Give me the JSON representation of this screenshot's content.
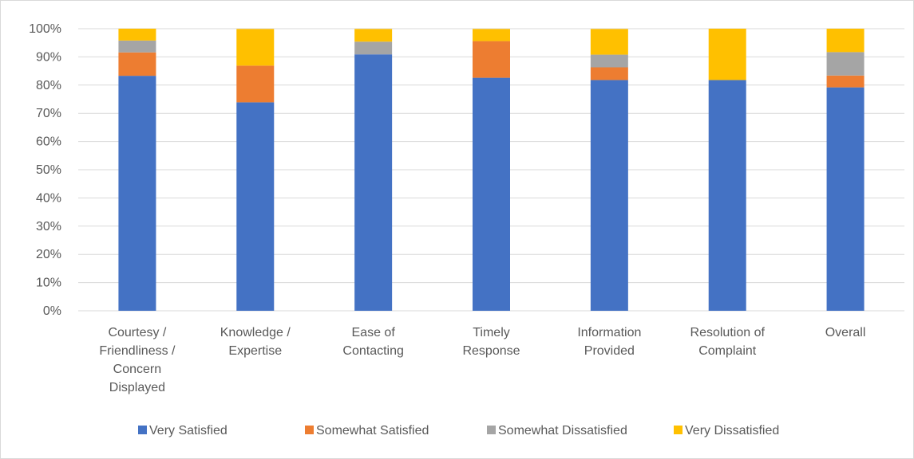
{
  "chart_data": {
    "type": "bar",
    "stacked": true,
    "percent": true,
    "categories": [
      [
        "Courtesy /",
        "Friendliness /",
        "Concern",
        "Displayed"
      ],
      [
        "Knowledge /",
        "Expertise"
      ],
      [
        "Ease of",
        "Contacting"
      ],
      [
        "Timely",
        "Response"
      ],
      [
        "Information",
        "Provided"
      ],
      [
        "Resolution of",
        "Complaint"
      ],
      [
        "Overall"
      ]
    ],
    "series": [
      {
        "name": "Very Satisfied",
        "color": "#4472C4",
        "values": [
          83.3,
          73.9,
          90.9,
          82.6,
          81.8,
          81.8,
          79.2
        ]
      },
      {
        "name": "Somewhat Satisfied",
        "color": "#ED7D31",
        "values": [
          8.3,
          13.0,
          0,
          13.0,
          4.5,
          0,
          4.2
        ]
      },
      {
        "name": "Somewhat Dissatisfied",
        "color": "#A5A5A5",
        "values": [
          4.2,
          0,
          4.5,
          0,
          4.5,
          0,
          8.3
        ]
      },
      {
        "name": "Very Dissatisfied",
        "color": "#FFC000",
        "values": [
          4.2,
          13.0,
          4.5,
          4.3,
          9.1,
          18.2,
          8.3
        ]
      }
    ],
    "yticks": [
      "0%",
      "10%",
      "20%",
      "30%",
      "40%",
      "50%",
      "60%",
      "70%",
      "80%",
      "90%",
      "100%"
    ],
    "ylim": [
      0,
      100
    ],
    "grid": true,
    "legend": "bottom"
  }
}
